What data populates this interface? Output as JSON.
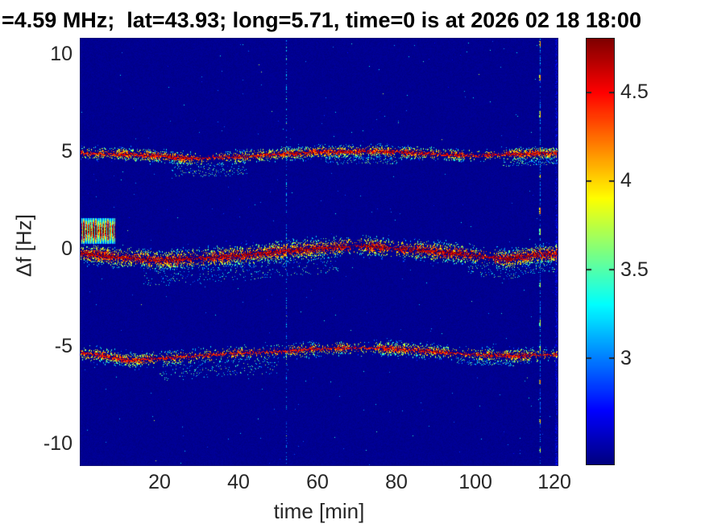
{
  "chart_data": {
    "type": "heatmap",
    "subtype": "doppler-spectrogram",
    "title": "=4.59 MHz;  lat=43.93; long=5.71, time=0 is at 2026 02 18 18:00",
    "xlabel": "time [min]",
    "ylabel": "Δf [Hz]",
    "xlim": [
      0,
      120.8
    ],
    "ylim": [
      -11.1,
      10.8
    ],
    "x_ticks": [
      20,
      40,
      60,
      80,
      100,
      120
    ],
    "y_ticks": [
      10,
      5,
      0,
      -5,
      -10
    ],
    "grid": false,
    "colormap": "jet",
    "colorbar": {
      "position": "right",
      "ticks": [
        3,
        3.5,
        4,
        4.5
      ],
      "clim": [
        2.4,
        4.8
      ]
    },
    "background_level": 2.45,
    "bands": [
      {
        "name": "upper-doppler-trace-+5Hz",
        "t": [
          0,
          10,
          20,
          26,
          32,
          40,
          50,
          60,
          75,
          90,
          100,
          110,
          120.8
        ],
        "f": [
          4.95,
          4.9,
          4.8,
          4.68,
          4.7,
          4.75,
          4.9,
          5.0,
          5.05,
          4.9,
          4.82,
          4.9,
          4.95
        ],
        "peak_level": 4.55,
        "spread_hz": 0.28,
        "speckle_density": 8,
        "subclouds": [
          {
            "t0": 23,
            "t1": 42,
            "depth_hz": 0.9
          },
          {
            "t0": 62,
            "t1": 80,
            "depth_hz": 0.6
          },
          {
            "t0": 107,
            "t1": 120.8,
            "depth_hz": 0.55
          }
        ]
      },
      {
        "name": "carrier-doppler-trace-0Hz",
        "t": [
          0,
          10,
          20,
          30,
          40,
          50,
          60,
          70,
          80,
          90,
          100,
          108,
          114,
          120.8
        ],
        "f": [
          -0.2,
          -0.4,
          -0.55,
          -0.45,
          -0.3,
          -0.1,
          0.05,
          0.2,
          0.05,
          -0.1,
          -0.3,
          -0.5,
          -0.3,
          -0.2
        ],
        "peak_level": 4.65,
        "spread_hz": 0.42,
        "speckle_density": 11,
        "subclouds": [
          {
            "t0": 16,
            "t1": 65,
            "depth_hz": 1.3
          },
          {
            "t0": 98,
            "t1": 112,
            "depth_hz": 1.0
          },
          {
            "t0": 112,
            "t1": 120.8,
            "depth_hz": 0.9
          }
        ]
      },
      {
        "name": "lower-doppler-trace--5Hz",
        "t": [
          0,
          6,
          12,
          20,
          30,
          40,
          50,
          60,
          70,
          80,
          90,
          100,
          110,
          120.8
        ],
        "f": [
          -5.3,
          -5.45,
          -5.7,
          -5.6,
          -5.45,
          -5.3,
          -5.25,
          -5.1,
          -5.05,
          -5.1,
          -5.25,
          -5.4,
          -5.45,
          -5.4
        ],
        "peak_level": 4.5,
        "spread_hz": 0.33,
        "speckle_density": 8,
        "subclouds": [
          {
            "t0": 20,
            "t1": 50,
            "depth_hz": 1.1
          },
          {
            "t0": 95,
            "t1": 110,
            "depth_hz": 0.5
          }
        ]
      }
    ],
    "startup_block": {
      "t_range": [
        0.3,
        8.6
      ],
      "f_range": [
        0.3,
        1.6
      ],
      "peak_level": 4.7
    },
    "vertical_artifacts": [
      {
        "t": 52,
        "style": "faint-dotted",
        "level": 3.3
      },
      {
        "t": 116.3,
        "style": "bright-dashed",
        "level": 4.2
      }
    ]
  }
}
